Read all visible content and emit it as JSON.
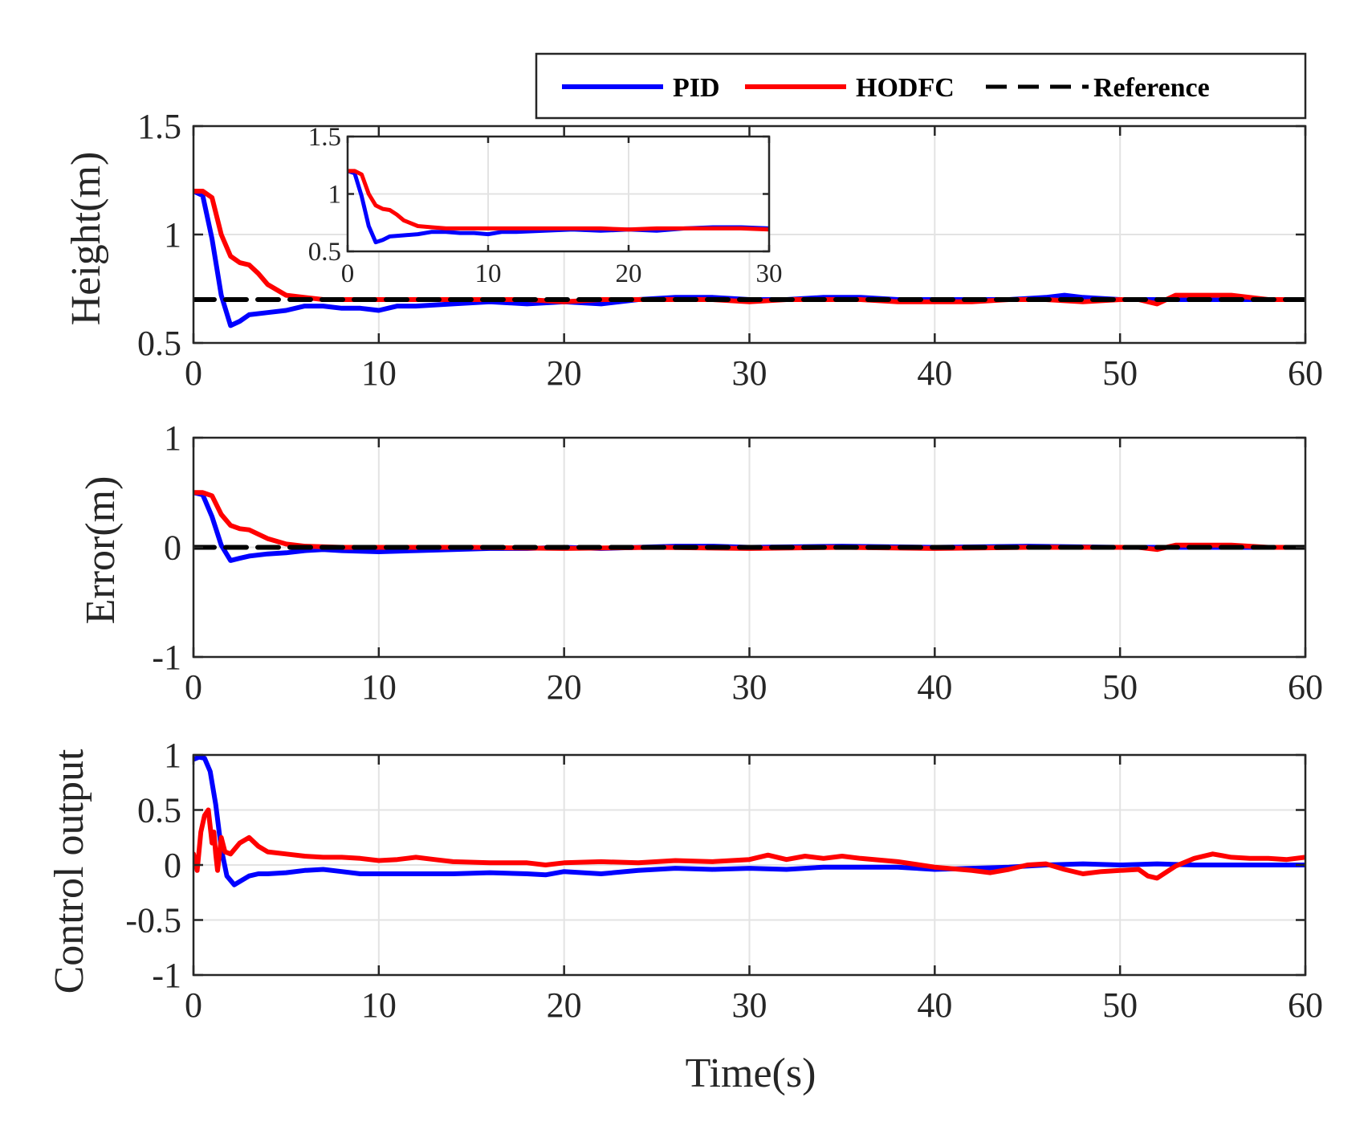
{
  "colors": {
    "pid": "#0000ff",
    "hodfc": "#ff0000",
    "reference": "#000000",
    "axis": "#262626",
    "grid": "#e3e3e3"
  },
  "legend": {
    "position": "top-right",
    "entries": [
      {
        "label": "PID",
        "color": "#0000ff",
        "style": "solid"
      },
      {
        "label": "HODFC",
        "color": "#ff0000",
        "style": "solid"
      },
      {
        "label": "Reference",
        "color": "#000000",
        "style": "dashed"
      }
    ]
  },
  "chart_data": [
    {
      "id": "height",
      "type": "line",
      "title": "",
      "xlabel": "",
      "ylabel": "Height(m)",
      "xlim": [
        0,
        60
      ],
      "ylim": [
        0.5,
        1.5
      ],
      "xticks": [
        0,
        10,
        20,
        30,
        40,
        50,
        60
      ],
      "xtick_labels": [
        "0",
        "10",
        "20",
        "30",
        "40",
        "50",
        "60"
      ],
      "yticks": [
        0.5,
        1,
        1.5
      ],
      "ytick_labels": [
        "0.5",
        "1",
        "1.5"
      ],
      "grid": true,
      "series": [
        {
          "name": "PID",
          "color": "#0000ff",
          "x": [
            0,
            0.5,
            1,
            1.5,
            2,
            2.5,
            3,
            4,
            5,
            6,
            7,
            8,
            9,
            10,
            11,
            12,
            14,
            16,
            18,
            20,
            22,
            24,
            26,
            28,
            30,
            32,
            34,
            36,
            38,
            40,
            42,
            44,
            46,
            47,
            48,
            50,
            52,
            54,
            56,
            58,
            60
          ],
          "y": [
            1.2,
            1.18,
            0.98,
            0.72,
            0.58,
            0.6,
            0.63,
            0.64,
            0.65,
            0.67,
            0.67,
            0.66,
            0.66,
            0.65,
            0.67,
            0.67,
            0.68,
            0.69,
            0.68,
            0.69,
            0.68,
            0.7,
            0.71,
            0.71,
            0.7,
            0.7,
            0.71,
            0.71,
            0.7,
            0.7,
            0.7,
            0.7,
            0.71,
            0.72,
            0.71,
            0.7,
            0.7,
            0.7,
            0.7,
            0.7,
            0.7
          ]
        },
        {
          "name": "HODFC",
          "color": "#ff0000",
          "x": [
            0,
            0.5,
            1,
            1.5,
            2,
            2.5,
            3,
            3.5,
            4,
            5,
            6,
            7,
            8,
            9,
            10,
            12,
            14,
            16,
            18,
            20,
            22,
            24,
            26,
            28,
            30,
            32,
            34,
            36,
            38,
            40,
            42,
            44,
            46,
            48,
            50,
            51,
            52,
            53,
            54,
            55,
            56,
            58,
            60
          ],
          "y": [
            1.2,
            1.2,
            1.17,
            1.0,
            0.9,
            0.87,
            0.86,
            0.82,
            0.77,
            0.72,
            0.71,
            0.7,
            0.7,
            0.7,
            0.7,
            0.7,
            0.7,
            0.7,
            0.7,
            0.69,
            0.7,
            0.7,
            0.7,
            0.7,
            0.69,
            0.7,
            0.7,
            0.7,
            0.69,
            0.69,
            0.69,
            0.7,
            0.7,
            0.69,
            0.7,
            0.7,
            0.68,
            0.72,
            0.72,
            0.72,
            0.72,
            0.7,
            0.7
          ]
        },
        {
          "name": "Reference",
          "color": "#000000",
          "dashed": true,
          "x": [
            0,
            60
          ],
          "y": [
            0.7,
            0.7
          ]
        }
      ],
      "inset": {
        "xlim": [
          0,
          30
        ],
        "ylim": [
          0.5,
          1.5
        ],
        "xticks": [
          0,
          10,
          20,
          30
        ],
        "xtick_labels": [
          "0",
          "10",
          "20",
          "30"
        ],
        "yticks": [
          0.5,
          1,
          1.5
        ],
        "ytick_labels": [
          "0.5",
          "1",
          "1.5"
        ],
        "grid": true
      }
    },
    {
      "id": "error",
      "type": "line",
      "title": "",
      "xlabel": "",
      "ylabel": "Error(m)",
      "xlim": [
        0,
        60
      ],
      "ylim": [
        -1,
        1
      ],
      "xticks": [
        0,
        10,
        20,
        30,
        40,
        50,
        60
      ],
      "xtick_labels": [
        "0",
        "10",
        "20",
        "30",
        "40",
        "50",
        "60"
      ],
      "yticks": [
        -1,
        0,
        1
      ],
      "ytick_labels": [
        "-1",
        "0",
        "1"
      ],
      "grid": true,
      "series": [
        {
          "name": "PID",
          "color": "#0000ff",
          "x": [
            0,
            0.5,
            1,
            1.5,
            2,
            2.5,
            3,
            4,
            5,
            6,
            7,
            8,
            10,
            12,
            14,
            16,
            18,
            20,
            22,
            24,
            26,
            28,
            30,
            35,
            40,
            45,
            50,
            55,
            60
          ],
          "y": [
            0.5,
            0.48,
            0.28,
            0.02,
            -0.12,
            -0.1,
            -0.08,
            -0.06,
            -0.05,
            -0.03,
            -0.02,
            -0.03,
            -0.04,
            -0.03,
            -0.02,
            -0.01,
            -0.01,
            0,
            -0.01,
            0,
            0.01,
            0.01,
            0,
            0.01,
            0,
            0.01,
            0,
            0,
            0
          ]
        },
        {
          "name": "HODFC",
          "color": "#ff0000",
          "x": [
            0,
            0.5,
            1,
            1.5,
            2,
            2.5,
            3,
            4,
            5,
            6,
            8,
            10,
            15,
            20,
            25,
            30,
            35,
            40,
            45,
            50,
            51,
            52,
            53,
            54,
            55,
            56,
            58,
            60
          ],
          "y": [
            0.5,
            0.5,
            0.47,
            0.3,
            0.2,
            0.17,
            0.16,
            0.08,
            0.03,
            0.01,
            0,
            0,
            0,
            -0.01,
            0,
            -0.01,
            0,
            -0.01,
            0,
            0,
            0,
            -0.02,
            0.02,
            0.02,
            0.02,
            0.02,
            0,
            0
          ]
        },
        {
          "name": "Reference",
          "color": "#000000",
          "dashed": true,
          "x": [
            0,
            60
          ],
          "y": [
            0,
            0
          ]
        }
      ]
    },
    {
      "id": "control",
      "type": "line",
      "title": "",
      "xlabel": "Time(s)",
      "ylabel": "Control output",
      "xlim": [
        0,
        60
      ],
      "ylim": [
        -1,
        1
      ],
      "xticks": [
        0,
        10,
        20,
        30,
        40,
        50,
        60
      ],
      "xtick_labels": [
        "0",
        "10",
        "20",
        "30",
        "40",
        "50",
        "60"
      ],
      "yticks": [
        -1,
        -0.5,
        0,
        0.5,
        1
      ],
      "ytick_labels": [
        "-1",
        "-0.5",
        "0",
        "0.5",
        "1"
      ],
      "grid": true,
      "series": [
        {
          "name": "PID",
          "color": "#0000ff",
          "x": [
            0,
            0.3,
            0.6,
            0.9,
            1.2,
            1.5,
            1.8,
            2.2,
            2.6,
            3,
            3.5,
            4,
            5,
            6,
            7,
            8,
            9,
            10,
            12,
            14,
            16,
            18,
            19,
            20,
            22,
            24,
            26,
            28,
            30,
            32,
            34,
            36,
            38,
            40,
            42,
            44,
            46,
            48,
            50,
            52,
            54,
            56,
            58,
            60
          ],
          "y": [
            0.96,
            0.98,
            0.97,
            0.85,
            0.55,
            0.15,
            -0.1,
            -0.18,
            -0.14,
            -0.1,
            -0.08,
            -0.08,
            -0.07,
            -0.05,
            -0.04,
            -0.06,
            -0.08,
            -0.08,
            -0.08,
            -0.08,
            -0.07,
            -0.08,
            -0.09,
            -0.06,
            -0.08,
            -0.05,
            -0.03,
            -0.04,
            -0.03,
            -0.04,
            -0.02,
            -0.02,
            -0.02,
            -0.04,
            -0.03,
            -0.02,
            0,
            0.01,
            0,
            0.01,
            0,
            0,
            0,
            0
          ]
        },
        {
          "name": "HODFC",
          "color": "#ff0000",
          "x": [
            0,
            0.2,
            0.4,
            0.6,
            0.8,
            1.0,
            1.1,
            1.2,
            1.3,
            1.5,
            1.7,
            2,
            2.5,
            3,
            3.5,
            4,
            5,
            6,
            7,
            8,
            9,
            10,
            11,
            12,
            13,
            14,
            16,
            18,
            19,
            20,
            22,
            24,
            26,
            28,
            30,
            31,
            32,
            33,
            34,
            35,
            36,
            38,
            40,
            42,
            43,
            44,
            45,
            46,
            47,
            48,
            49,
            50,
            51,
            51.5,
            52,
            53,
            54,
            55,
            56,
            57,
            58,
            59,
            60
          ],
          "y": [
            0.1,
            -0.05,
            0.3,
            0.45,
            0.5,
            0.2,
            0.3,
            0.1,
            -0.05,
            0.25,
            0.12,
            0.1,
            0.2,
            0.25,
            0.17,
            0.12,
            0.1,
            0.08,
            0.07,
            0.07,
            0.06,
            0.04,
            0.05,
            0.07,
            0.05,
            0.03,
            0.02,
            0.02,
            0,
            0.02,
            0.03,
            0.02,
            0.04,
            0.03,
            0.05,
            0.09,
            0.05,
            0.08,
            0.06,
            0.08,
            0.06,
            0.03,
            -0.02,
            -0.05,
            -0.07,
            -0.04,
            0,
            0.01,
            -0.04,
            -0.08,
            -0.06,
            -0.05,
            -0.04,
            -0.1,
            -0.12,
            -0.01,
            0.06,
            0.1,
            0.07,
            0.06,
            0.06,
            0.05,
            0.07
          ]
        }
      ]
    }
  ]
}
